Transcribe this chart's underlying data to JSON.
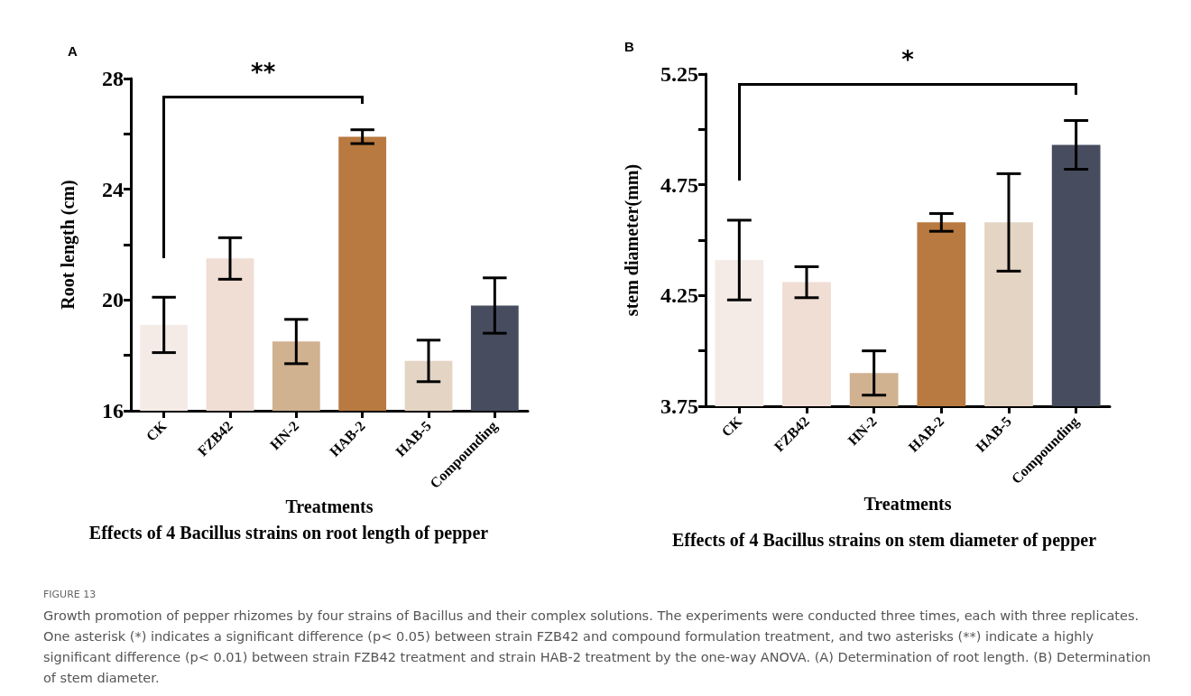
{
  "chart_data": [
    {
      "type": "bar",
      "title": "Effects of 4 Bacillus strains on root length of pepper",
      "xlabel": "Treatments",
      "ylabel": "Root length (cm)",
      "categories": [
        "CK",
        "FZB42",
        "HN-2",
        "HAB-2",
        "HAB-5",
        "Compounding"
      ],
      "values": [
        19.1,
        21.5,
        18.5,
        25.9,
        17.8,
        19.8
      ],
      "errors": [
        1.0,
        0.75,
        0.8,
        0.25,
        0.75,
        1.0
      ],
      "colors": [
        "#f5ebe6",
        "#f0ddd3",
        "#d0b190",
        "#b87a40",
        "#e4d4c4",
        "#474d5e"
      ],
      "ylim": [
        16,
        28
      ],
      "yticks": [
        16,
        {
          "value": 18,
          "label": null
        },
        20,
        {
          "value": 22,
          "label": null
        },
        24,
        {
          "value": 26,
          "label": null
        },
        28
      ],
      "grid": false,
      "annotations": [
        "A",
        "**"
      ]
    },
    {
      "type": "bar",
      "title": "Effects of 4 Bacillus strains on stem diameter of pepper",
      "xlabel": "Treatments",
      "ylabel": "stem diameter(mm)",
      "categories": [
        "CK",
        "FZB42",
        "HN-2",
        "HAB-2",
        "HAB-5",
        "Compounding"
      ],
      "values": [
        4.41,
        4.31,
        3.9,
        4.58,
        4.58,
        4.93
      ],
      "errors": [
        0.18,
        0.07,
        0.1,
        0.04,
        0.22,
        0.11
      ],
      "colors": [
        "#f5ebe6",
        "#f0ddd3",
        "#d0b190",
        "#b87a40",
        "#e4d4c4",
        "#474d5e"
      ],
      "ylim": [
        3.75,
        5.25
      ],
      "yticks": [
        3.75,
        {
          "value": 4.0,
          "label": null
        },
        4.25,
        {
          "value": 4.5,
          "label": null
        },
        4.75,
        {
          "value": 5.0,
          "label": null
        },
        5.25
      ],
      "grid": false,
      "annotations": [
        "B",
        "*",
        "FIGURE 13",
        "Growth promotion of pepper rhizomes by four strains of Bacillus and their complex solutions. The experiments were conducted three times, each with three replicates. One asterisk (*) indicates a significant difference (p< 0.05) between strain FZB42 and compound formulation treatment, and two asterisks (**) indicate a highly significant difference (p< 0.01) between strain FZB42 treatment and strain HAB-2 treatment by the one-way ANOVA. (A) Determination of root length. (B) Determination of stem diameter."
      ]
    }
  ]
}
